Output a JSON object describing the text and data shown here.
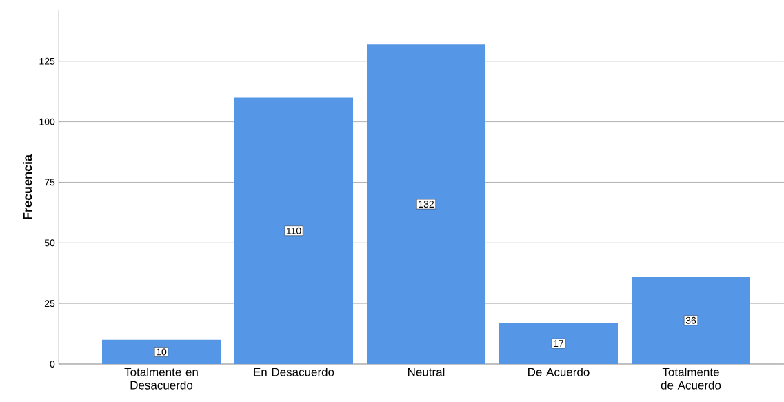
{
  "chart_data": {
    "type": "bar",
    "ylabel": "Frecuencia",
    "categories": [
      "Totalmente en Desacuerdo",
      "En Desacuerdo",
      "Neutral",
      "De Acuerdo",
      "Totalmente de Acuerdo"
    ],
    "values": [
      10,
      110,
      132,
      17,
      36
    ],
    "color": "#5596e6",
    "ylim": [
      0,
      146
    ],
    "yticks": [
      0,
      25,
      50,
      75,
      100,
      125
    ],
    "grid": "y",
    "data_labels": true
  }
}
